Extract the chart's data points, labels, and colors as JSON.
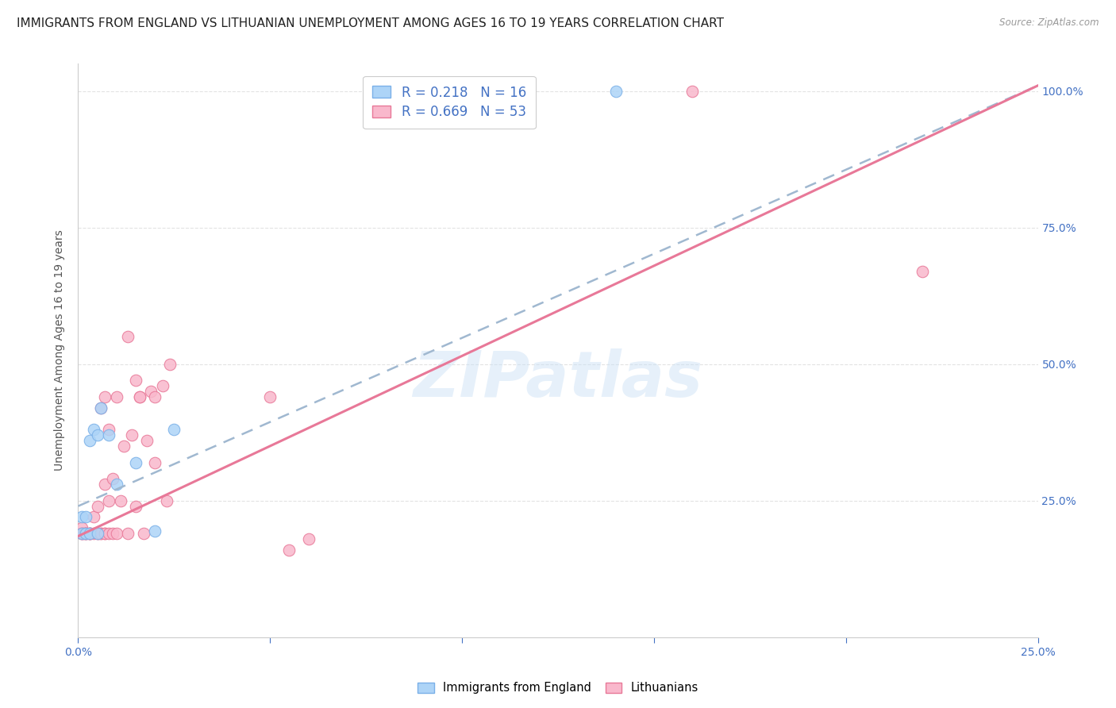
{
  "title": "IMMIGRANTS FROM ENGLAND VS LITHUANIAN UNEMPLOYMENT AMONG AGES 16 TO 19 YEARS CORRELATION CHART",
  "source": "Source: ZipAtlas.com",
  "ylabel": "Unemployment Among Ages 16 to 19 years",
  "xlim": [
    0.0,
    0.25
  ],
  "ylim": [
    0.0,
    1.05
  ],
  "xticks": [
    0.0,
    0.05,
    0.1,
    0.15,
    0.2,
    0.25
  ],
  "xticklabels": [
    "0.0%",
    "",
    "",
    "",
    "",
    "25.0%"
  ],
  "yticks": [
    0.25,
    0.5,
    0.75,
    1.0
  ],
  "yticklabels": [
    "25.0%",
    "50.0%",
    "75.0%",
    "100.0%"
  ],
  "england_color": "#add4f7",
  "england_edge": "#7ab0e8",
  "england_line_color": "#90c0e8",
  "lithuanian_color": "#f9b8cc",
  "lithuanian_edge": "#e87898",
  "lithuanian_line_color": "#e87898",
  "england_R": 0.218,
  "england_N": 16,
  "lithuanian_R": 0.669,
  "lithuanian_N": 53,
  "watermark": "ZIPatlas",
  "england_scatter_x": [
    0.001,
    0.001,
    0.002,
    0.002,
    0.003,
    0.003,
    0.004,
    0.005,
    0.005,
    0.006,
    0.008,
    0.01,
    0.015,
    0.02,
    0.025,
    0.14
  ],
  "england_scatter_y": [
    0.19,
    0.22,
    0.19,
    0.22,
    0.19,
    0.36,
    0.38,
    0.19,
    0.37,
    0.42,
    0.37,
    0.28,
    0.32,
    0.195,
    0.38,
    1.0
  ],
  "lithuanian_scatter_x": [
    0.001,
    0.001,
    0.001,
    0.001,
    0.0015,
    0.002,
    0.002,
    0.002,
    0.003,
    0.003,
    0.003,
    0.003,
    0.004,
    0.004,
    0.005,
    0.005,
    0.005,
    0.006,
    0.006,
    0.006,
    0.007,
    0.007,
    0.007,
    0.007,
    0.008,
    0.008,
    0.008,
    0.009,
    0.009,
    0.01,
    0.01,
    0.011,
    0.012,
    0.013,
    0.013,
    0.014,
    0.015,
    0.015,
    0.016,
    0.016,
    0.017,
    0.018,
    0.019,
    0.02,
    0.02,
    0.022,
    0.023,
    0.024,
    0.05,
    0.055,
    0.06,
    0.16,
    0.22
  ],
  "lithuanian_scatter_y": [
    0.19,
    0.19,
    0.2,
    0.19,
    0.19,
    0.19,
    0.19,
    0.19,
    0.19,
    0.19,
    0.19,
    0.19,
    0.19,
    0.22,
    0.19,
    0.19,
    0.24,
    0.19,
    0.42,
    0.19,
    0.19,
    0.28,
    0.44,
    0.19,
    0.19,
    0.25,
    0.38,
    0.19,
    0.29,
    0.19,
    0.44,
    0.25,
    0.35,
    0.55,
    0.19,
    0.37,
    0.47,
    0.24,
    0.44,
    0.44,
    0.19,
    0.36,
    0.45,
    0.44,
    0.32,
    0.46,
    0.25,
    0.5,
    0.44,
    0.16,
    0.18,
    1.0,
    0.67
  ],
  "background_color": "#ffffff",
  "grid_color": "#d8d8d8",
  "title_fontsize": 11,
  "axis_label_fontsize": 10,
  "tick_fontsize": 10,
  "legend_fontsize": 12,
  "tick_color": "#4472c4"
}
